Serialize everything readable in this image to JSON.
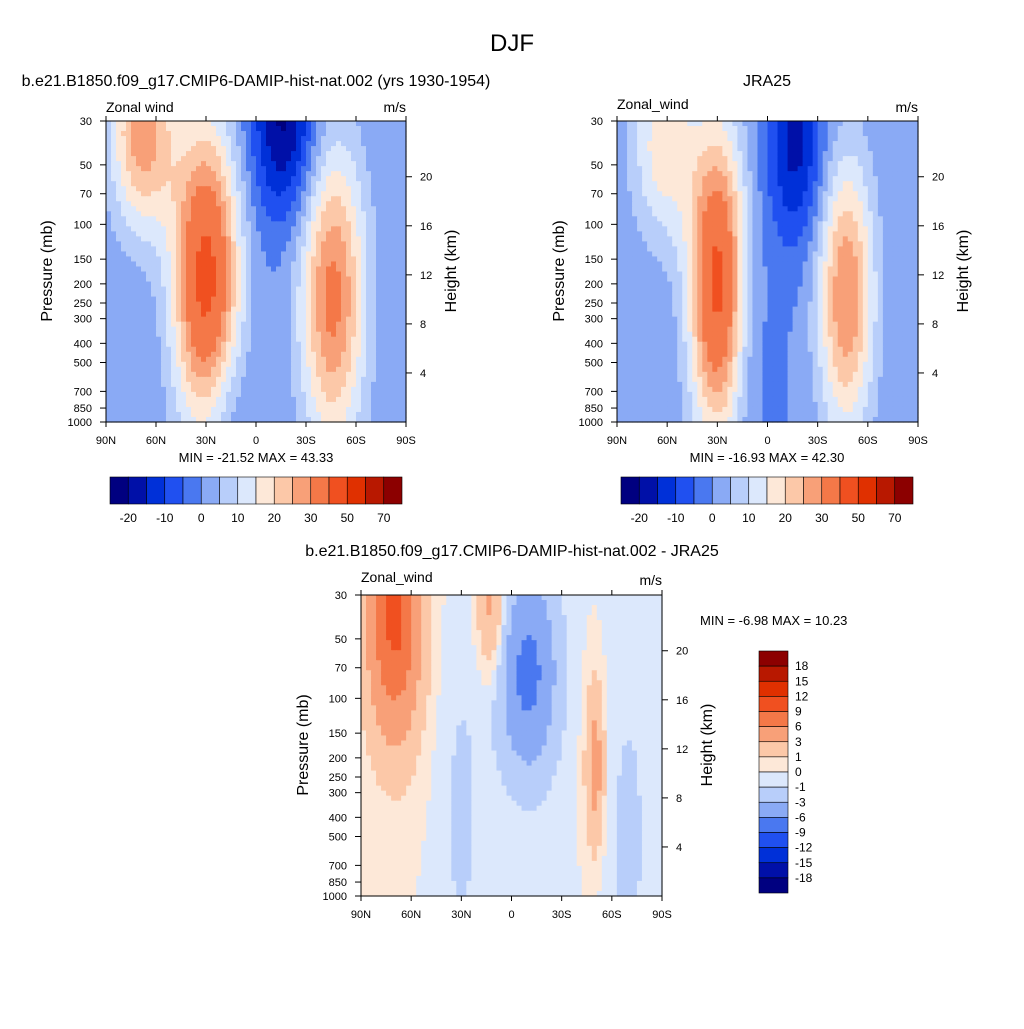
{
  "figure": {
    "title": "DJF"
  },
  "colors": {
    "scale": [
      "#000080",
      "#0010a8",
      "#0030d8",
      "#2050f0",
      "#4a78f0",
      "#8aaaf5",
      "#b8cefa",
      "#dce8fc",
      "#fde8d8",
      "#fcc8a8",
      "#f8a078",
      "#f47848",
      "#f05020",
      "#e03000",
      "#b81800",
      "#8c0000"
    ]
  },
  "chart_data": [
    {
      "type": "heatmap",
      "title": "b.e21.B1850.f09_g17.CMIP6-DAMIP-hist-nat.002 (yrs 1930-1954)",
      "left_label": "Zonal wind",
      "right_label": "m/s",
      "ylabel": "Pressure (mb)",
      "y2label": "Height (km)",
      "x_ticks": [
        "90N",
        "60N",
        "30N",
        "0",
        "30S",
        "60S",
        "90S"
      ],
      "y_ticks": [
        "30",
        "50",
        "70",
        "100",
        "150",
        "200",
        "250",
        "300",
        "400",
        "500",
        "700",
        "850",
        "1000"
      ],
      "y2_ticks": [
        "20",
        "16",
        "12",
        "8",
        "4"
      ],
      "stats": "MIN = -21.52  MAX =  43.33",
      "colorbar_labels": [
        "-20",
        "-10",
        "0",
        "10",
        "20",
        "30",
        "50",
        "70"
      ],
      "xlim": [
        90,
        -90
      ],
      "ylim": [
        1000,
        30
      ],
      "log_y": true,
      "min": -21.52,
      "max": 43.33,
      "features": [
        {
          "lat": 30,
          "p": 190,
          "amp": 43.3,
          "width_lat": 14,
          "width_logp": 0.55
        },
        {
          "lat": -46,
          "p": 230,
          "amp": 32,
          "width_lat": 14,
          "width_logp": 0.55
        },
        {
          "lat": 68,
          "p": 35,
          "amp": 28,
          "width_lat": 14,
          "width_logp": 0.35
        },
        {
          "lat": -17,
          "p": 30,
          "amp": -21.5,
          "width_lat": 14,
          "width_logp": 0.35
        },
        {
          "lat": 20,
          "p": 800,
          "amp": -6,
          "width_lat": 12,
          "width_logp": 0.25
        }
      ]
    },
    {
      "type": "heatmap",
      "title": "JRA25",
      "left_label": "Zonal_wind",
      "right_label": "m/s",
      "ylabel": "Pressure (mb)",
      "y2label": "Height (km)",
      "x_ticks": [
        "90N",
        "60N",
        "30N",
        "0",
        "30S",
        "60S",
        "90S"
      ],
      "y_ticks": [
        "30",
        "50",
        "70",
        "100",
        "150",
        "200",
        "250",
        "300",
        "400",
        "500",
        "700",
        "850",
        "1000"
      ],
      "y2_ticks": [
        "20",
        "16",
        "12",
        "8",
        "4"
      ],
      "stats": "MIN = -16.93  MAX =  42.30",
      "colorbar_labels": [
        "-20",
        "-10",
        "0",
        "10",
        "20",
        "30",
        "50",
        "70"
      ],
      "xlim": [
        90,
        -90
      ],
      "ylim": [
        1000,
        30
      ],
      "log_y": true,
      "min": -16.93,
      "max": 42.3,
      "features": [
        {
          "lat": 30,
          "p": 200,
          "amp": 42.3,
          "width_lat": 12,
          "width_logp": 0.55
        },
        {
          "lat": -47,
          "p": 230,
          "amp": 30,
          "width_lat": 12,
          "width_logp": 0.5
        },
        {
          "lat": 62,
          "p": 40,
          "amp": 18,
          "width_lat": 14,
          "width_logp": 0.35
        },
        {
          "lat": -17,
          "p": 40,
          "amp": -16.9,
          "width_lat": 12,
          "width_logp": 0.35
        },
        {
          "lat": 12,
          "p": 420,
          "amp": -4,
          "width_lat": 10,
          "width_logp": 0.4
        }
      ]
    },
    {
      "type": "heatmap",
      "title": "b.e21.B1850.f09_g17.CMIP6-DAMIP-hist-nat.002 - JRA25",
      "left_label": "Zonal_wind",
      "right_label": "m/s",
      "ylabel": "Pressure (mb)",
      "y2label": "Height (km)",
      "x_ticks": [
        "90N",
        "60N",
        "30N",
        "0",
        "30S",
        "60S",
        "90S"
      ],
      "y_ticks": [
        "30",
        "50",
        "70",
        "100",
        "150",
        "200",
        "250",
        "300",
        "400",
        "500",
        "700",
        "850",
        "1000"
      ],
      "y2_ticks": [
        "20",
        "16",
        "12",
        "8",
        "4"
      ],
      "stats": "MIN =  -6.98  MAX =  10.23",
      "colorbar_labels": [
        "18",
        "15",
        "12",
        "9",
        "6",
        "3",
        "1",
        "0",
        "-1",
        "-3",
        "-6",
        "-9",
        "-12",
        "-15",
        "-18"
      ],
      "xlim": [
        90,
        -90
      ],
      "ylim": [
        1000,
        30
      ],
      "log_y": true,
      "min": -6.98,
      "max": 10.23,
      "features": [
        {
          "lat": 70,
          "p": 35,
          "amp": 10.2,
          "width_lat": 11,
          "width_logp": 0.45
        },
        {
          "lat": 12,
          "p": 35,
          "amp": 4,
          "width_lat": 6,
          "width_logp": 0.25
        },
        {
          "lat": -10,
          "p": 75,
          "amp": -7,
          "width_lat": 12,
          "width_logp": 0.35
        },
        {
          "lat": -50,
          "p": 220,
          "amp": 4.5,
          "width_lat": 4,
          "width_logp": 0.3
        },
        {
          "lat": 30,
          "p": 400,
          "amp": -1.2,
          "width_lat": 10,
          "width_logp": 0.8
        },
        {
          "lat": -70,
          "p": 500,
          "amp": -1.2,
          "width_lat": 12,
          "width_logp": 0.8
        }
      ]
    }
  ]
}
